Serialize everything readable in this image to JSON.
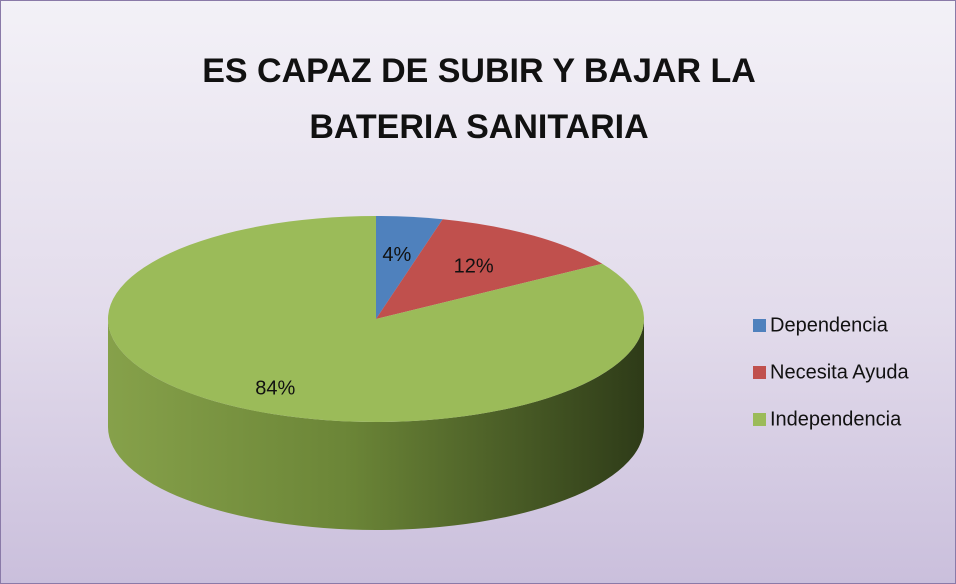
{
  "chart_data": {
    "type": "pie",
    "title": "ES CAPAZ DE SUBIR Y BAJAR LA BATERIA SANITARIA",
    "categories": [
      "Dependencia",
      "Necesita Ayuda",
      "Independencia"
    ],
    "values": [
      4,
      12,
      84
    ],
    "value_labels": [
      "4%",
      "12%",
      "84%"
    ],
    "colors": [
      "#4f81bd",
      "#c0504d",
      "#9bbb59"
    ],
    "legend": "right"
  }
}
